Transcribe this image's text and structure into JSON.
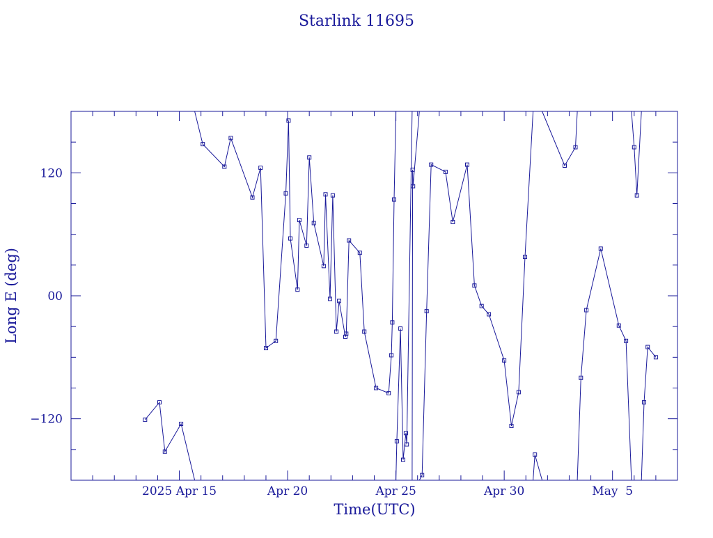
{
  "chart_data": {
    "type": "line",
    "title": "Starlink 11695",
    "xlabel": "Time(UTC)",
    "ylabel": "Long E (deg)",
    "x_tick_labels": [
      "2025 Apr 15",
      "Apr 20",
      "Apr 25",
      "Apr 30",
      "May  5"
    ],
    "x_tick_dates": [
      "2025-04-15",
      "2025-04-20",
      "2025-04-25",
      "2025-04-30",
      "2025-05-05"
    ],
    "xlim": [
      "2025-04-10T00:00",
      "2025-05-08T00:00"
    ],
    "y_tick_labels": [
      "−120",
      "00",
      "120"
    ],
    "y_tick_values": [
      -120,
      0,
      120
    ],
    "ylim": [
      -180,
      180
    ],
    "grid": false,
    "color": "#1a1a9a",
    "series": [
      {
        "values": [
          [
            "2025-04-13T10:00",
            -121
          ],
          [
            "2025-04-14T02:00",
            -104
          ],
          [
            "2025-04-14T08:00",
            -152
          ],
          [
            "2025-04-15T02:00",
            -125
          ],
          [
            "2025-04-15T17:00",
            -180
          ]
        ]
      },
      {
        "values": [
          [
            "2025-04-15T17:00",
            180
          ],
          [
            "2025-04-16T02:00",
            148
          ],
          [
            "2025-04-17T02:00",
            126
          ],
          [
            "2025-04-17T09:00",
            154
          ],
          [
            "2025-04-18T09:00",
            96
          ],
          [
            "2025-04-18T18:00",
            125
          ],
          [
            "2025-04-19T00:00",
            -51
          ],
          [
            "2025-04-19T11:00",
            -44
          ],
          [
            "2025-04-19T22:00",
            100
          ],
          [
            "2025-04-20T01:00",
            171
          ],
          [
            "2025-04-20T03:00",
            56
          ],
          [
            "2025-04-20T11:00",
            6
          ],
          [
            "2025-04-20T13:00",
            74
          ],
          [
            "2025-04-20T21:00",
            49
          ],
          [
            "2025-04-21T00:00",
            135
          ],
          [
            "2025-04-21T05:00",
            71
          ],
          [
            "2025-04-21T16:00",
            29
          ],
          [
            "2025-04-21T18:00",
            99
          ],
          [
            "2025-04-21T23:00",
            -3
          ],
          [
            "2025-04-22T02:00",
            98
          ],
          [
            "2025-04-22T06:00",
            -35
          ],
          [
            "2025-04-22T09:00",
            -5
          ],
          [
            "2025-04-22T16:00",
            -40
          ],
          [
            "2025-04-22T17:00",
            -37
          ],
          [
            "2025-04-22T20:00",
            54
          ],
          [
            "2025-04-23T08:00",
            42
          ],
          [
            "2025-04-23T13:00",
            -35
          ],
          [
            "2025-04-24T02:00",
            -90
          ],
          [
            "2025-04-24T16:00",
            -95
          ],
          [
            "2025-04-24T19:00",
            -58
          ],
          [
            "2025-04-24T20:00",
            -26
          ],
          [
            "2025-04-24T22:00",
            94
          ],
          [
            "2025-04-25T00:00",
            180
          ]
        ]
      },
      {
        "values": [
          [
            "2025-04-25T00:00",
            -180
          ],
          [
            "2025-04-25T01:00",
            -142
          ],
          [
            "2025-04-25T05:00",
            -32
          ],
          [
            "2025-04-25T08:00",
            -160
          ],
          [
            "2025-04-25T11:00",
            -134
          ],
          [
            "2025-04-25T12:00",
            -145
          ],
          [
            "2025-04-25T18:00",
            180
          ]
        ]
      },
      {
        "values": [
          [
            "2025-04-25T18:00",
            -180
          ],
          [
            "2025-04-25T18:30",
            123
          ],
          [
            "2025-04-25T19:00",
            107
          ],
          [
            "2025-04-26T02:00",
            180
          ]
        ]
      },
      {
        "values": [
          [
            "2025-04-26T02:00",
            -180
          ],
          [
            "2025-04-26T05:00",
            -175
          ],
          [
            "2025-04-26T10:00",
            -15
          ],
          [
            "2025-04-26T15:00",
            128
          ],
          [
            "2025-04-27T07:00",
            121
          ],
          [
            "2025-04-27T15:00",
            72
          ],
          [
            "2025-04-28T07:00",
            128
          ],
          [
            "2025-04-28T15:00",
            10
          ],
          [
            "2025-04-28T23:00",
            -10
          ],
          [
            "2025-04-29T07:00",
            -18
          ],
          [
            "2025-04-30T00:00",
            -63
          ],
          [
            "2025-04-30T08:00",
            -127
          ],
          [
            "2025-04-30T16:00",
            -94
          ],
          [
            "2025-04-30T23:00",
            38
          ],
          [
            "2025-05-01T08:00",
            180
          ]
        ]
      },
      {
        "values": [
          [
            "2025-05-01T08:00",
            -180
          ],
          [
            "2025-05-01T10:00",
            -155
          ],
          [
            "2025-05-01T18:00",
            -180
          ]
        ]
      },
      {
        "values": [
          [
            "2025-05-01T18:00",
            180
          ],
          [
            "2025-05-02T19:00",
            127
          ],
          [
            "2025-05-03T07:00",
            145
          ],
          [
            "2025-05-03T09:00",
            180
          ]
        ]
      },
      {
        "values": [
          [
            "2025-05-03T09:00",
            -180
          ],
          [
            "2025-05-03T13:00",
            -80
          ],
          [
            "2025-05-03T19:00",
            -14
          ],
          [
            "2025-05-04T11:00",
            46
          ],
          [
            "2025-05-05T07:00",
            -29
          ],
          [
            "2025-05-05T15:00",
            -44
          ],
          [
            "2025-05-05T21:00",
            -180
          ]
        ]
      },
      {
        "values": [
          [
            "2025-05-05T21:00",
            180
          ],
          [
            "2025-05-06T00:00",
            145
          ],
          [
            "2025-05-06T03:00",
            98
          ],
          [
            "2025-05-06T08:00",
            180
          ]
        ]
      },
      {
        "values": [
          [
            "2025-05-06T08:00",
            -180
          ],
          [
            "2025-05-06T11:00",
            -104
          ],
          [
            "2025-05-06T15:00",
            -50
          ],
          [
            "2025-05-07T00:00",
            -60
          ]
        ]
      }
    ]
  }
}
